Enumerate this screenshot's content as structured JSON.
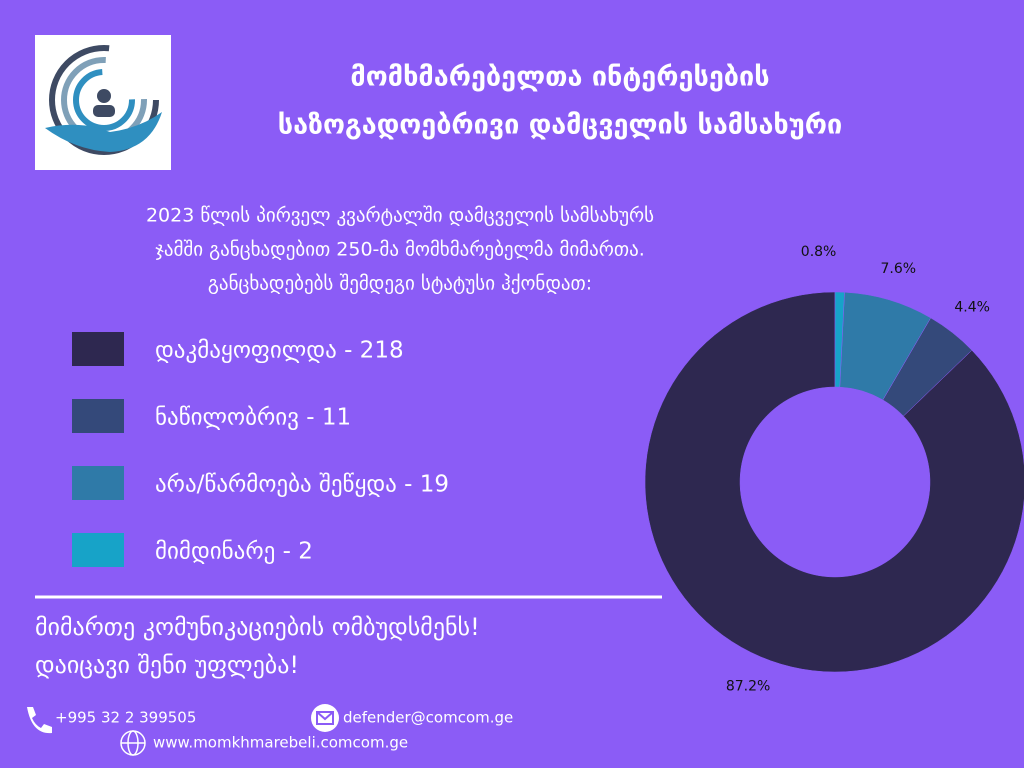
{
  "header": {
    "title_lines": [
      "მომხმარებელთა ინტერესების",
      "საზოგადოებრივი დამცველის სამსახური"
    ]
  },
  "intro": [
    "2023 წლის პირველ კვარტალში დამცველის სამსახურს",
    "ჯამში  განცხადებით 250-მა მომხმარებელმა მიმართა.",
    "განცხადებებს შემდეგი სტატუსი ჰქონდათ:"
  ],
  "chart_data": {
    "type": "pie",
    "categories": [
      "დაკმაყოფილდა - 218",
      "ნაწილობრივ - 11",
      "არა/წარმოება შეწყდა - 19",
      "მიმდინარე - 2"
    ],
    "values": [
      87.2,
      4.4,
      7.6,
      0.8
    ],
    "value_labels": [
      "87.2%",
      "4.4%",
      "7.6%",
      "0.8%"
    ],
    "colors": [
      "#2e2850",
      "#34497a",
      "#2f7aa8",
      "#17a3c8"
    ]
  },
  "slogan": [
    "მიმართე კომუნიკაციების ომბუდსმენს!",
    "დაიცავი შენი უფლება!"
  ],
  "contacts": {
    "phone": "+995 32 2 399505",
    "email": "defender@comcom.ge",
    "website": "www.momkhmarebeli.comcom.ge"
  }
}
